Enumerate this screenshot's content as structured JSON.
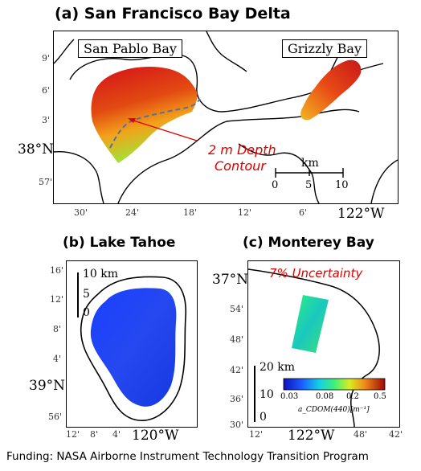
{
  "panels": {
    "a": {
      "title": "(a) San Francisco Bay Delta",
      "label_san_pablo": "San Pablo Bay",
      "label_grizzly": "Grizzly Bay",
      "annotation_line1": "2 m Depth",
      "annotation_line2": "Contour",
      "scale_unit": "km",
      "scale_ticks": [
        "0",
        "5",
        "10"
      ],
      "lat_ticks": [
        "9'",
        "6'",
        "3'",
        "38°N",
        "57'"
      ],
      "lon_ticks": [
        "30'",
        "24'",
        "18'",
        "12'",
        "6'",
        "122°W"
      ]
    },
    "b": {
      "title": "(b) Lake Tahoe",
      "scale_top": "10 km",
      "scale_mid": "5",
      "scale_zero": "0",
      "lat_ticks": [
        "16'",
        "12'",
        "8'",
        "4'",
        "39°N",
        "56'"
      ],
      "lon_ticks": [
        "12'",
        "8'",
        "4'",
        "120°W"
      ]
    },
    "c": {
      "title": "(c) Monterey Bay",
      "uncertainty_label": "7% Uncertainty",
      "scale_top": "20 km",
      "scale_mid": "10",
      "scale_zero": "0",
      "colorbar_ticks": [
        "0.03",
        "0.08",
        "0.2",
        "0.5"
      ],
      "colorbar_label": "a_CDOM(440)[m⁻¹]",
      "lat_ticks": [
        "37°N",
        "54'",
        "48'",
        "42'",
        "36'",
        "30'"
      ],
      "lon_ticks": [
        "12'",
        "122°W",
        "48'",
        "42'"
      ]
    }
  },
  "footer": "Funding: NASA Airborne Instrument Technology Transition Program",
  "colors": {
    "annotation_red": "#e00000",
    "contour_dash": "#5a6e9a",
    "lake_blue": "#1e3cff"
  }
}
